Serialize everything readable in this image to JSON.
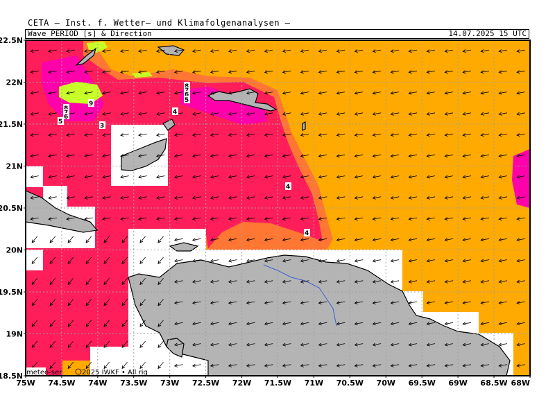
{
  "header": {
    "title": "CETA — Inst. f. Wetter— und Klimafolgenanalysen —",
    "product": "Wave PERIOD [s] & Direction",
    "valid_time": "14.07.2025 15 UTC"
  },
  "axes": {
    "lat_labels": [
      "22.5N",
      "22N",
      "21.5N",
      "21N",
      "20.5N",
      "20N",
      "19.5N",
      "19N",
      "18.5N"
    ],
    "lon_labels": [
      "75W",
      "74.5W",
      "74W",
      "73.5W",
      "73W",
      "72.5W",
      "72W",
      "71.5W",
      "71W",
      "70.5W",
      "70W",
      "69.5W",
      "69W",
      "68.5W",
      "68W"
    ]
  },
  "contour_labels": [
    "9",
    "8",
    "7",
    "6",
    "5",
    "4",
    "3",
    "8",
    "7",
    "6",
    "5",
    "4",
    "4",
    "4"
  ],
  "footer": {
    "credit": "meteo-ser",
    "copyright": "2025 IWKF • All rig"
  },
  "colors": {
    "period_high": "#ffaa00",
    "period_mid": "#ff7733",
    "period_low": "#ff1e5a",
    "period_lowest": "#ff00aa",
    "period_peak": "#c8ff28",
    "land": "#b4b4b4",
    "river": "#4060d0"
  }
}
